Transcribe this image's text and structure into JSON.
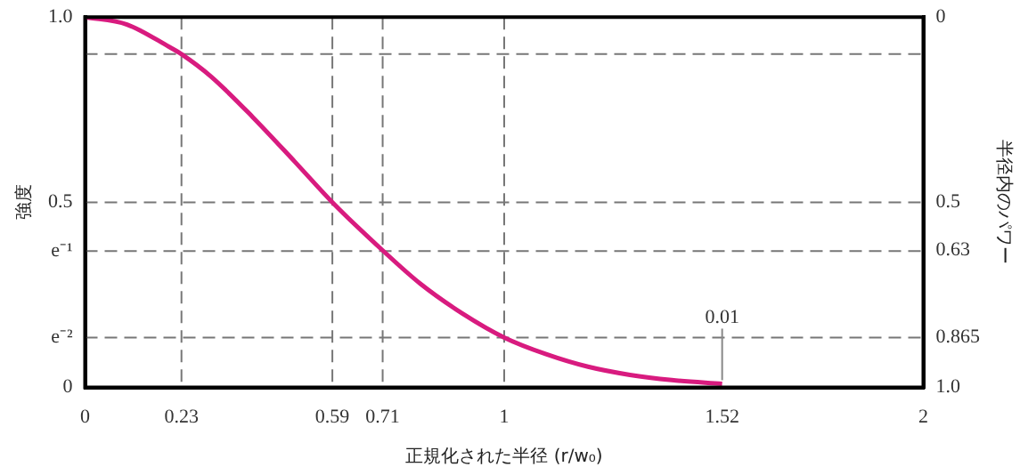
{
  "chart_data": {
    "type": "line",
    "xlabel": "正規化された半径 (r/w₀)",
    "ylabel": "強度",
    "y2label": "半径内のパワー",
    "x": [
      0,
      0.1,
      0.2,
      0.23,
      0.3,
      0.4,
      0.5,
      0.59,
      0.71,
      0.8,
      0.9,
      1.0,
      1.1,
      1.2,
      1.3,
      1.4,
      1.52
    ],
    "series": [
      {
        "color": "#d81b7f",
        "values": [
          1,
          0.98,
          0.92,
          0.9,
          0.84,
          0.73,
          0.61,
          0.5,
          0.37,
          0.28,
          0.2,
          0.135,
          0.09,
          0.056,
          0.034,
          0.02,
          0.01
        ]
      }
    ],
    "xlim": [
      0,
      2
    ],
    "xticks": [
      0,
      0.23,
      0.59,
      0.71,
      1,
      1.52,
      2
    ],
    "ylim": [
      0,
      1
    ],
    "yticks": [
      0,
      {
        "value": 0.135,
        "label": "e⁻²"
      },
      {
        "value": 0.368,
        "label": "e⁻¹"
      },
      0.5,
      {
        "value": 1,
        "label": "1.0"
      }
    ],
    "y2lim": [
      1,
      0
    ],
    "y2ticks": [
      0,
      0.5,
      0.63,
      0.865,
      {
        "value": 1,
        "label": "1.0"
      }
    ],
    "ref_lines": [
      {
        "axis": "y",
        "value": 0.5,
        "line_style": "dashed"
      },
      {
        "axis": "y",
        "value": 0.368,
        "line_style": "dashed"
      },
      {
        "axis": "y",
        "value": 0.135,
        "line_style": "dashed"
      },
      {
        "axis": "y",
        "value": 0.9,
        "line_style": "dashed"
      },
      {
        "axis": "x",
        "value": 0.23,
        "line_style": "dashed"
      },
      {
        "axis": "x",
        "value": 0.59,
        "line_style": "dashed"
      },
      {
        "axis": "x",
        "value": 0.71,
        "line_style": "dashed"
      },
      {
        "axis": "x",
        "value": 1,
        "line_style": "dashed"
      }
    ],
    "annotations": [
      {
        "text": "0.01",
        "x": 1.52,
        "y": 0.01
      }
    ],
    "grid": false,
    "legend": false,
    "marker": "none",
    "line_style": "solid"
  }
}
